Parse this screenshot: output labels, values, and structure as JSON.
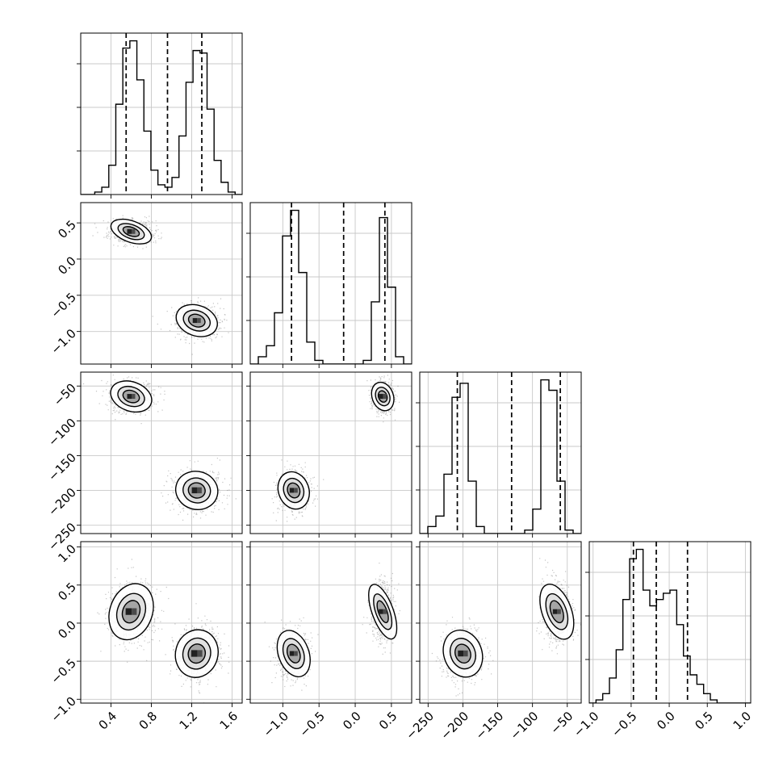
{
  "chart_data": {
    "type": "corner",
    "title": "",
    "parameters": [
      {
        "name": "",
        "range": [
          0.1,
          1.7
        ],
        "ticks": [
          0.4,
          0.8,
          1.2,
          1.6
        ],
        "tick_labels": [
          "0.4",
          "0.8",
          "1.2",
          "1.6"
        ],
        "quantiles": [
          0.55,
          0.96,
          1.3
        ],
        "histogram": {
          "bin_edges": [
            0.1,
            0.1696,
            0.2391,
            0.3087,
            0.3783,
            0.4478,
            0.5174,
            0.587,
            0.6565,
            0.7261,
            0.7957,
            0.8652,
            0.9348,
            1.0043,
            1.0739,
            1.1435,
            1.213,
            1.2826,
            1.3522,
            1.4217,
            1.4913,
            1.5609,
            1.6304,
            1.7
          ],
          "counts": [
            0,
            0,
            1,
            3,
            12,
            37,
            60,
            63,
            47,
            26,
            10,
            4,
            3,
            7,
            24,
            46,
            59,
            58,
            35,
            14,
            5,
            1,
            0
          ]
        }
      },
      {
        "name": "",
        "range": [
          -1.45,
          0.78
        ],
        "ticks": [
          -1.0,
          -0.5,
          0.0,
          0.5
        ],
        "tick_labels": [
          "−1.0",
          "−0.5",
          "0.0",
          "0.5"
        ],
        "quantiles": [
          -0.88,
          -0.16,
          0.41
        ],
        "histogram": {
          "bin_edges": [
            -1.45,
            -1.3385,
            -1.227,
            -1.1155,
            -1.004,
            -0.8925,
            -0.781,
            -0.6695,
            -0.558,
            -0.4465,
            -0.335,
            -0.2235,
            -0.112,
            -0.0005,
            0.111,
            0.2225,
            0.3345,
            0.446,
            0.5575,
            0.669,
            0.78
          ],
          "counts": [
            0,
            2,
            5,
            14,
            35,
            42,
            25,
            6,
            1,
            0,
            0,
            0,
            0,
            0,
            1,
            17,
            40,
            21,
            2,
            0
          ]
        }
      },
      {
        "name": "",
        "range": [
          -262,
          -30
        ],
        "ticks": [
          -250,
          -200,
          -150,
          -100,
          -50
        ],
        "tick_labels": [
          "−250",
          "−200",
          "−150",
          "−100",
          "−50"
        ],
        "quantiles": [
          -208,
          -130,
          -60
        ],
        "histogram": {
          "bin_edges": [
            -262,
            -250.4,
            -238.8,
            -227.2,
            -215.6,
            -204,
            -192.4,
            -180.8,
            -169.2,
            -157.6,
            -146,
            -134.4,
            -122.8,
            -111.2,
            -99.6,
            -88,
            -76.4,
            -64.8,
            -53.2,
            -41.6,
            -30
          ],
          "counts": [
            0,
            2,
            5,
            17,
            39,
            43,
            15,
            2,
            0,
            0,
            0,
            0,
            0,
            1,
            7,
            44,
            41,
            15,
            1,
            0
          ]
        }
      },
      {
        "name": "",
        "range": [
          -1.05,
          1.07
        ],
        "ticks": [
          -1.0,
          -0.5,
          0.0,
          0.5,
          1.0
        ],
        "tick_labels": [
          "−1.0",
          "−0.5",
          "0.0",
          "0.5",
          "1.0"
        ],
        "quantiles": [
          -0.47,
          -0.17,
          0.24
        ],
        "histogram": {
          "bin_edges": [
            -1.05,
            -0.9617,
            -0.8733,
            -0.785,
            -0.6967,
            -0.6083,
            -0.52,
            -0.4317,
            -0.3433,
            -0.255,
            -0.1667,
            -0.0783,
            0.01,
            0.0983,
            0.1867,
            0.275,
            0.3633,
            0.4517,
            0.54,
            0.6283,
            0.7167,
            0.805,
            0.8933,
            0.9817,
            1.07
          ],
          "counts": [
            0,
            1,
            3,
            8,
            17,
            33,
            46,
            49,
            36,
            31,
            33,
            35,
            36,
            25,
            15,
            9,
            6,
            3,
            1,
            0,
            0,
            0,
            0,
            0
          ]
        }
      }
    ],
    "modes": [
      {
        "mean": [
          0.6,
          0.38,
          -65,
          0.15
        ],
        "sd": [
          0.1,
          0.07,
          10,
          0.18
        ]
      },
      {
        "mean": [
          1.25,
          -0.85,
          -200,
          -0.4
        ],
        "sd": [
          0.1,
          0.1,
          13,
          0.15
        ]
      }
    ],
    "contour_levels": [
      "outer",
      "middle",
      "inner"
    ],
    "grid": true,
    "legend": "none"
  }
}
